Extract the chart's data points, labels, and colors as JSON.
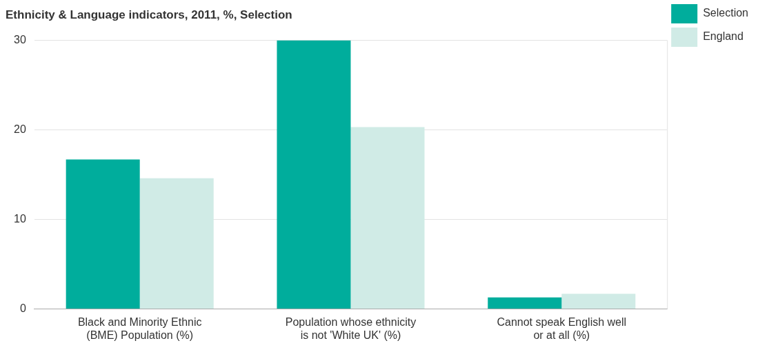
{
  "chart_data": {
    "type": "bar",
    "title": "Ethnicity & Language indicators, 2011, %, Selection",
    "categories": [
      "Black and Minority Ethnic (BME) Population (%)",
      "Population whose ethnicity is not 'White UK' (%)",
      "Cannot speak English well or at all (%)"
    ],
    "series": [
      {
        "name": "Selection",
        "color": "#00ad9c",
        "values": [
          16.7,
          30,
          1.3
        ]
      },
      {
        "name": "England",
        "color": "#d0ebe6",
        "values": [
          14.6,
          20.3,
          1.7
        ]
      }
    ],
    "ylim": [
      0,
      30
    ],
    "yticks": [
      0,
      10,
      20,
      30
    ],
    "grid": "y",
    "legend": "top right"
  }
}
